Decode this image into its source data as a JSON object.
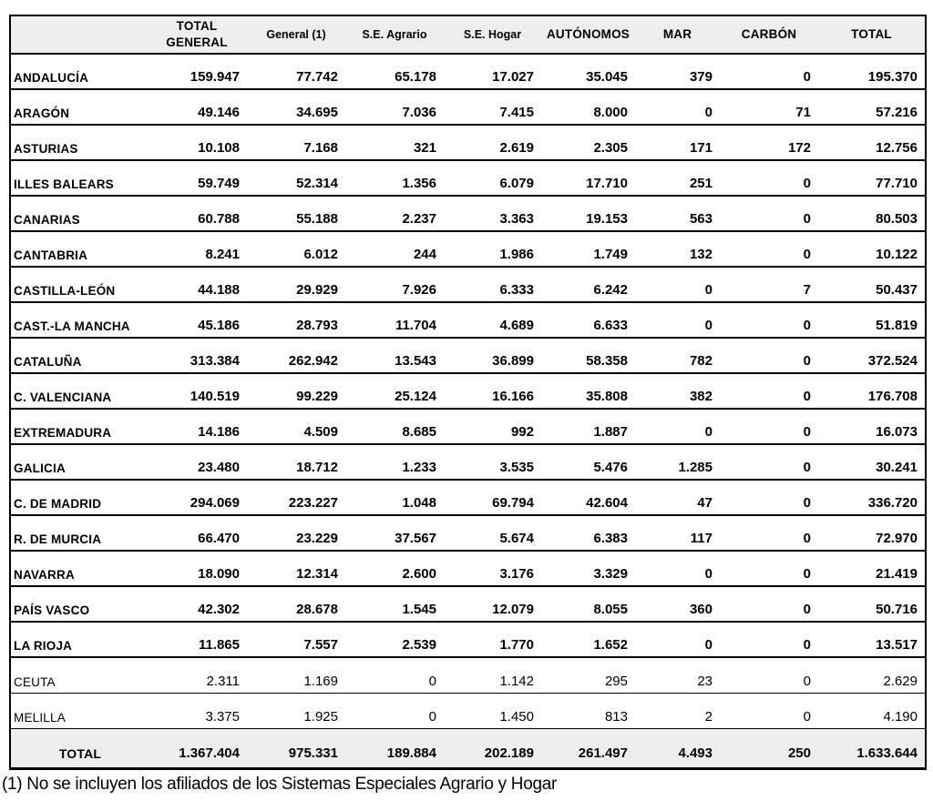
{
  "table": {
    "columns": [
      "",
      "TOTAL GENERAL",
      "General (1)",
      "S.E. Agrario",
      "S.E. Hogar",
      "AUTÓNOMOS",
      "MAR",
      "CARBÓN",
      "TOTAL"
    ],
    "rows": [
      {
        "region": "ANDALUCÍA",
        "values": [
          "159.947",
          "77.742",
          "65.178",
          "17.027",
          "35.045",
          "379",
          "0",
          "195.370"
        ],
        "light": false
      },
      {
        "region": "ARAGÓN",
        "values": [
          "49.146",
          "34.695",
          "7.036",
          "7.415",
          "8.000",
          "0",
          "71",
          "57.216"
        ],
        "light": false
      },
      {
        "region": "ASTURIAS",
        "values": [
          "10.108",
          "7.168",
          "321",
          "2.619",
          "2.305",
          "171",
          "172",
          "12.756"
        ],
        "light": false
      },
      {
        "region": "ILLES BALEARS",
        "values": [
          "59.749",
          "52.314",
          "1.356",
          "6.079",
          "17.710",
          "251",
          "0",
          "77.710"
        ],
        "light": false
      },
      {
        "region": "CANARIAS",
        "values": [
          "60.788",
          "55.188",
          "2.237",
          "3.363",
          "19.153",
          "563",
          "0",
          "80.503"
        ],
        "light": false
      },
      {
        "region": "CANTABRIA",
        "values": [
          "8.241",
          "6.012",
          "244",
          "1.986",
          "1.749",
          "132",
          "0",
          "10.122"
        ],
        "light": false
      },
      {
        "region": "CASTILLA-LEÓN",
        "values": [
          "44.188",
          "29.929",
          "7.926",
          "6.333",
          "6.242",
          "0",
          "7",
          "50.437"
        ],
        "light": false
      },
      {
        "region": "CAST.-LA MANCHA",
        "values": [
          "45.186",
          "28.793",
          "11.704",
          "4.689",
          "6.633",
          "0",
          "0",
          "51.819"
        ],
        "light": false
      },
      {
        "region": "CATALUÑA",
        "values": [
          "313.384",
          "262.942",
          "13.543",
          "36.899",
          "58.358",
          "782",
          "0",
          "372.524"
        ],
        "light": false
      },
      {
        "region": "C. VALENCIANA",
        "values": [
          "140.519",
          "99.229",
          "25.124",
          "16.166",
          "35.808",
          "382",
          "0",
          "176.708"
        ],
        "light": false
      },
      {
        "region": "EXTREMADURA",
        "values": [
          "14.186",
          "4.509",
          "8.685",
          "992",
          "1.887",
          "0",
          "0",
          "16.073"
        ],
        "light": false
      },
      {
        "region": "GALICIA",
        "values": [
          "23.480",
          "18.712",
          "1.233",
          "3.535",
          "5.476",
          "1.285",
          "0",
          "30.241"
        ],
        "light": false
      },
      {
        "region": "C. DE MADRID",
        "values": [
          "294.069",
          "223.227",
          "1.048",
          "69.794",
          "42.604",
          "47",
          "0",
          "336.720"
        ],
        "light": false
      },
      {
        "region": "R. DE MURCIA",
        "values": [
          "66.470",
          "23.229",
          "37.567",
          "5.674",
          "6.383",
          "117",
          "0",
          "72.970"
        ],
        "light": false
      },
      {
        "region": "NAVARRA",
        "values": [
          "18.090",
          "12.314",
          "2.600",
          "3.176",
          "3.329",
          "0",
          "0",
          "21.419"
        ],
        "light": false
      },
      {
        "region": "PAÍS VASCO",
        "values": [
          "42.302",
          "28.678",
          "1.545",
          "12.079",
          "8.055",
          "360",
          "0",
          "50.716"
        ],
        "light": false
      },
      {
        "region": "LA RIOJA",
        "values": [
          "11.865",
          "7.557",
          "2.539",
          "1.770",
          "1.652",
          "0",
          "0",
          "13.517"
        ],
        "light": false
      },
      {
        "region": "CEUTA",
        "values": [
          "2.311",
          "1.169",
          "0",
          "1.142",
          "295",
          "23",
          "0",
          "2.629"
        ],
        "light": true
      },
      {
        "region": "MELILLA",
        "values": [
          "3.375",
          "1.925",
          "0",
          "1.450",
          "813",
          "2",
          "0",
          "4.190"
        ],
        "light": true
      }
    ],
    "total_row": {
      "label": "TOTAL",
      "values": [
        "1.367.404",
        "975.331",
        "189.884",
        "202.189",
        "261.497",
        "4.493",
        "250",
        "1.633.644"
      ]
    },
    "footnote": "(1) No se incluyen los afiliados de los Sistemas Especiales Agrario y Hogar"
  },
  "colors": {
    "header_background": "#eeeeee",
    "total_row_background": "#eeeeee",
    "border": "#000000",
    "text": "#000000",
    "page_background": "#ffffff"
  }
}
